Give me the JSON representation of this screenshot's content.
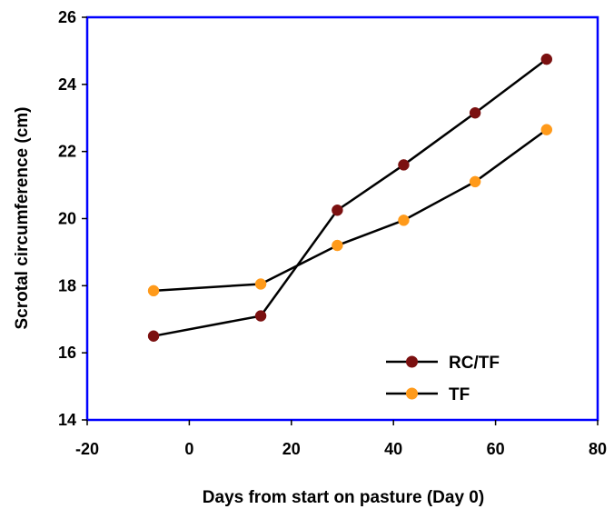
{
  "chart_data": {
    "type": "line",
    "title": "",
    "xlabel": "Days from start on pasture (Day 0)",
    "ylabel": "Scrotal circumference (cm)",
    "xlim": [
      -20,
      80
    ],
    "ylim": [
      14,
      26
    ],
    "xticks": [
      -20,
      0,
      20,
      40,
      60,
      80
    ],
    "yticks": [
      14,
      16,
      18,
      20,
      22,
      24,
      26
    ],
    "xtick_labels": [
      "-20",
      "0",
      "20",
      "40",
      "60",
      "80"
    ],
    "ytick_labels": [
      "14",
      "16",
      "18",
      "20",
      "22",
      "24",
      "26"
    ],
    "grid": false,
    "legend_position": "bottom-right",
    "frame_color": "#0000ff",
    "line_color": "#000000",
    "series": [
      {
        "name": "RC/TF",
        "color": "#7b1010",
        "x": [
          -7,
          14,
          29,
          42,
          56,
          70
        ],
        "y": [
          16.5,
          17.1,
          20.25,
          21.6,
          23.15,
          24.75
        ]
      },
      {
        "name": "TF",
        "color": "#ff9a1a",
        "x": [
          -7,
          14,
          29,
          42,
          56,
          70
        ],
        "y": [
          17.85,
          18.05,
          19.2,
          19.95,
          21.1,
          22.65
        ]
      }
    ]
  }
}
